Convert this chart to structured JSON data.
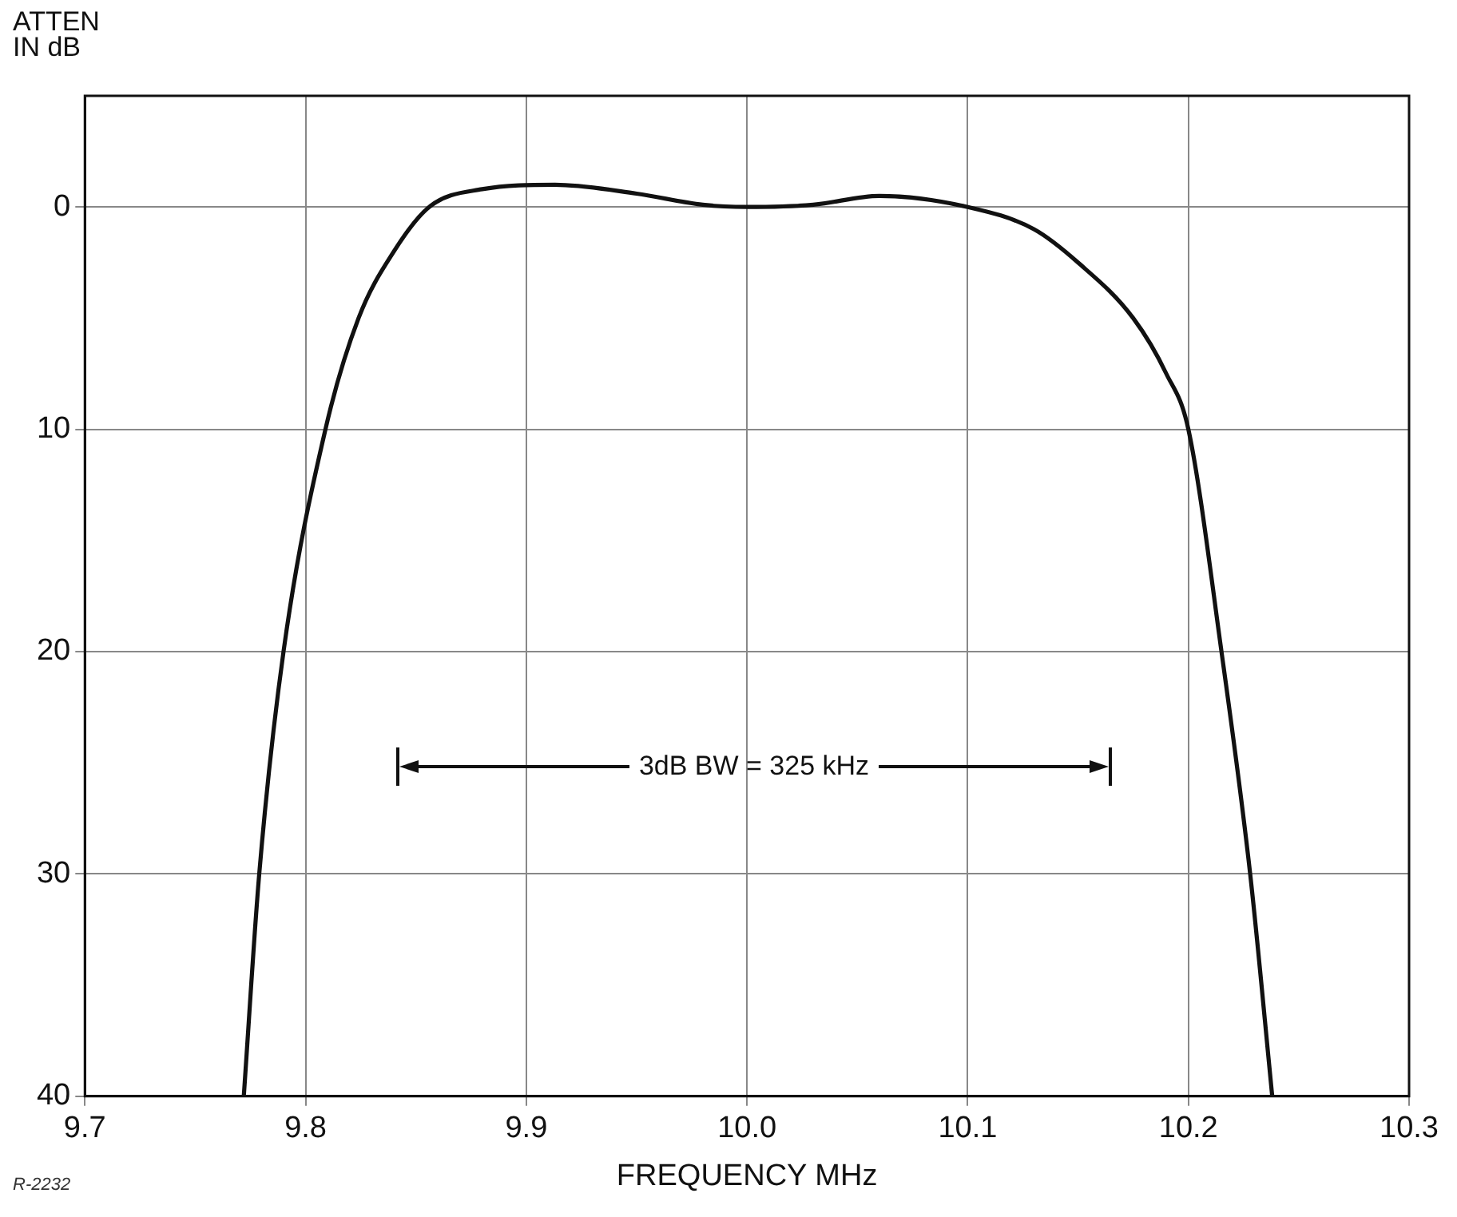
{
  "chart_data": {
    "type": "line",
    "xlabel": "FREQUENCY MHz",
    "ylabel": "ATTEN IN dB",
    "x": [
      9.772,
      9.779,
      9.79,
      9.809,
      9.824,
      9.84,
      9.856,
      9.88,
      9.913,
      9.95,
      9.98,
      10.0,
      10.03,
      10.06,
      10.1,
      10.13,
      10.15,
      10.175,
      10.19,
      10.2,
      10.215,
      10.228,
      10.238
    ],
    "series": [
      {
        "color": "#111111",
        "values": [
          40,
          30,
          20,
          10,
          5,
          2,
          0,
          -0.8,
          -1,
          -0.6,
          -0.1,
          0,
          -0.1,
          -0.5,
          0,
          1,
          2.5,
          5,
          7.5,
          10,
          20,
          30,
          40
        ]
      }
    ],
    "xlim": [
      9.7,
      10.3
    ],
    "xticks": [
      9.7,
      9.8,
      9.9,
      {
        "value": 10,
        "label": "10.0"
      },
      10.1,
      10.2,
      10.3
    ],
    "ylim": [
      40,
      -5
    ],
    "yticks": [
      0,
      10,
      20,
      30,
      40
    ],
    "grid": true,
    "legend": false,
    "marker": "none",
    "line_style": "solid",
    "annotations": [
      "3dB BW = 325 kHz",
      "R-2232"
    ]
  }
}
